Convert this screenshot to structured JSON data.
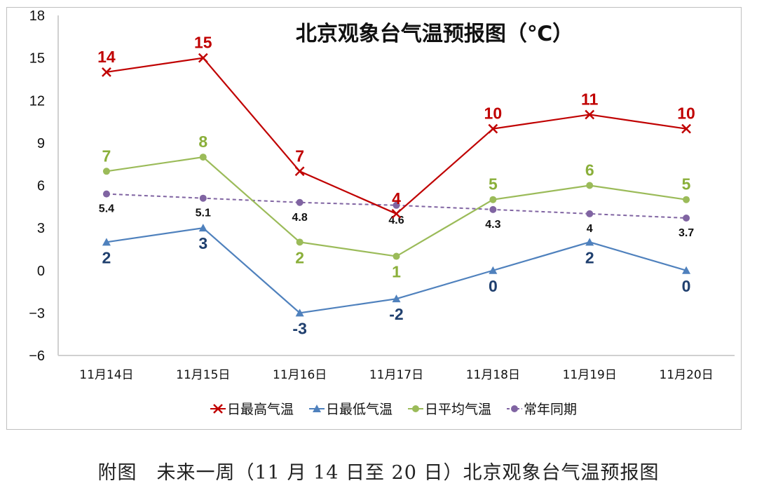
{
  "chart_data": {
    "type": "line",
    "title": "北京观象台气温预报图（℃）",
    "categories": [
      "11月14日",
      "11月15日",
      "11月16日",
      "11月17日",
      "11月18日",
      "11月19日",
      "11月20日"
    ],
    "ylim": [
      -6,
      18
    ],
    "yticks": [
      -6,
      -3,
      0,
      3,
      6,
      9,
      12,
      15,
      18
    ],
    "grid": false,
    "legend": "bottom",
    "series": [
      {
        "name": "日最高气温",
        "values": [
          14,
          15,
          7,
          4,
          10,
          11,
          10
        ],
        "color": "#C00000",
        "marker": "x",
        "style": "solid"
      },
      {
        "name": "日最低气温",
        "values": [
          2,
          3,
          -3,
          -2,
          0,
          2,
          0
        ],
        "color": "#4F81BD",
        "label_color": "#1F3F6E",
        "marker": "triangle",
        "style": "solid"
      },
      {
        "name": "日平均气温",
        "values": [
          7,
          8,
          2,
          1,
          5,
          6,
          5
        ],
        "color": "#9BBB59",
        "label_color": "#8AAF3A",
        "marker": "circle",
        "style": "solid"
      },
      {
        "name": "常年同期",
        "values": [
          5.4,
          5.1,
          4.8,
          4.6,
          4.3,
          4,
          3.7
        ],
        "color": "#8064A2",
        "label_color": "#111111",
        "marker": "circle",
        "style": "dashed"
      }
    ]
  },
  "caption": "附图　未来一周（11 月 14 日至 20 日）北京观象台气温预报图"
}
